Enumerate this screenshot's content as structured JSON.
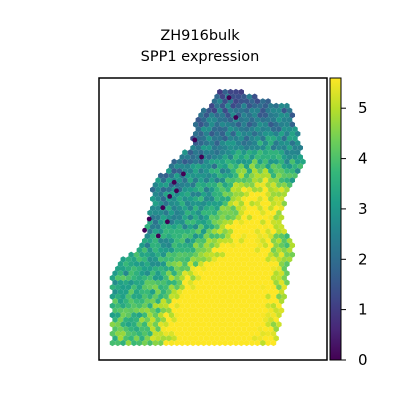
{
  "chart_data": {
    "type": "scatter",
    "title": "ZH916bulk",
    "subtitle": "SPP1 expression",
    "xlabel": "",
    "ylabel": "",
    "marker": "hexagon",
    "colormap": "viridis",
    "colorbar": {
      "min": 0,
      "max": 5.6,
      "ticks": [
        0,
        1,
        2,
        3,
        4,
        5
      ],
      "tick_labels": [
        "0",
        "1",
        "2",
        "3",
        "4",
        "5"
      ]
    },
    "color_stops": [
      "#440154",
      "#482878",
      "#3e4989",
      "#31688e",
      "#26828e",
      "#1f9e89",
      "#35b779",
      "#6ece58",
      "#b5de2b",
      "#fde725"
    ],
    "x_range": [
      0,
      1
    ],
    "y_range": [
      0,
      1
    ],
    "grid": false,
    "legend": "none",
    "spatial_pattern": {
      "tissue_outline": [
        [
          0.05,
          0.06
        ],
        [
          0.05,
          0.3
        ],
        [
          0.09,
          0.36
        ],
        [
          0.18,
          0.4
        ],
        [
          0.22,
          0.5
        ],
        [
          0.23,
          0.62
        ],
        [
          0.3,
          0.68
        ],
        [
          0.4,
          0.76
        ],
        [
          0.43,
          0.86
        ],
        [
          0.52,
          0.95
        ],
        [
          0.6,
          0.96
        ],
        [
          0.66,
          0.94
        ],
        [
          0.84,
          0.9
        ],
        [
          0.88,
          0.8
        ],
        [
          0.9,
          0.68
        ],
        [
          0.83,
          0.6
        ],
        [
          0.8,
          0.5
        ],
        [
          0.86,
          0.42
        ],
        [
          0.83,
          0.3
        ],
        [
          0.8,
          0.16
        ],
        [
          0.78,
          0.06
        ]
      ],
      "high_expression_centers": [
        [
          0.7,
          0.56
        ],
        [
          0.62,
          0.3
        ],
        [
          0.55,
          0.16
        ],
        [
          0.45,
          0.12
        ]
      ],
      "low_expression_points": [
        [
          0.57,
          0.93
        ],
        [
          0.42,
          0.78
        ],
        [
          0.37,
          0.66
        ],
        [
          0.33,
          0.63
        ],
        [
          0.31,
          0.58
        ],
        [
          0.28,
          0.54
        ],
        [
          0.3,
          0.49
        ],
        [
          0.26,
          0.44
        ],
        [
          0.22,
          0.5
        ],
        [
          0.2,
          0.46
        ],
        [
          0.34,
          0.6
        ],
        [
          0.45,
          0.72
        ],
        [
          0.6,
          0.86
        ]
      ]
    }
  }
}
